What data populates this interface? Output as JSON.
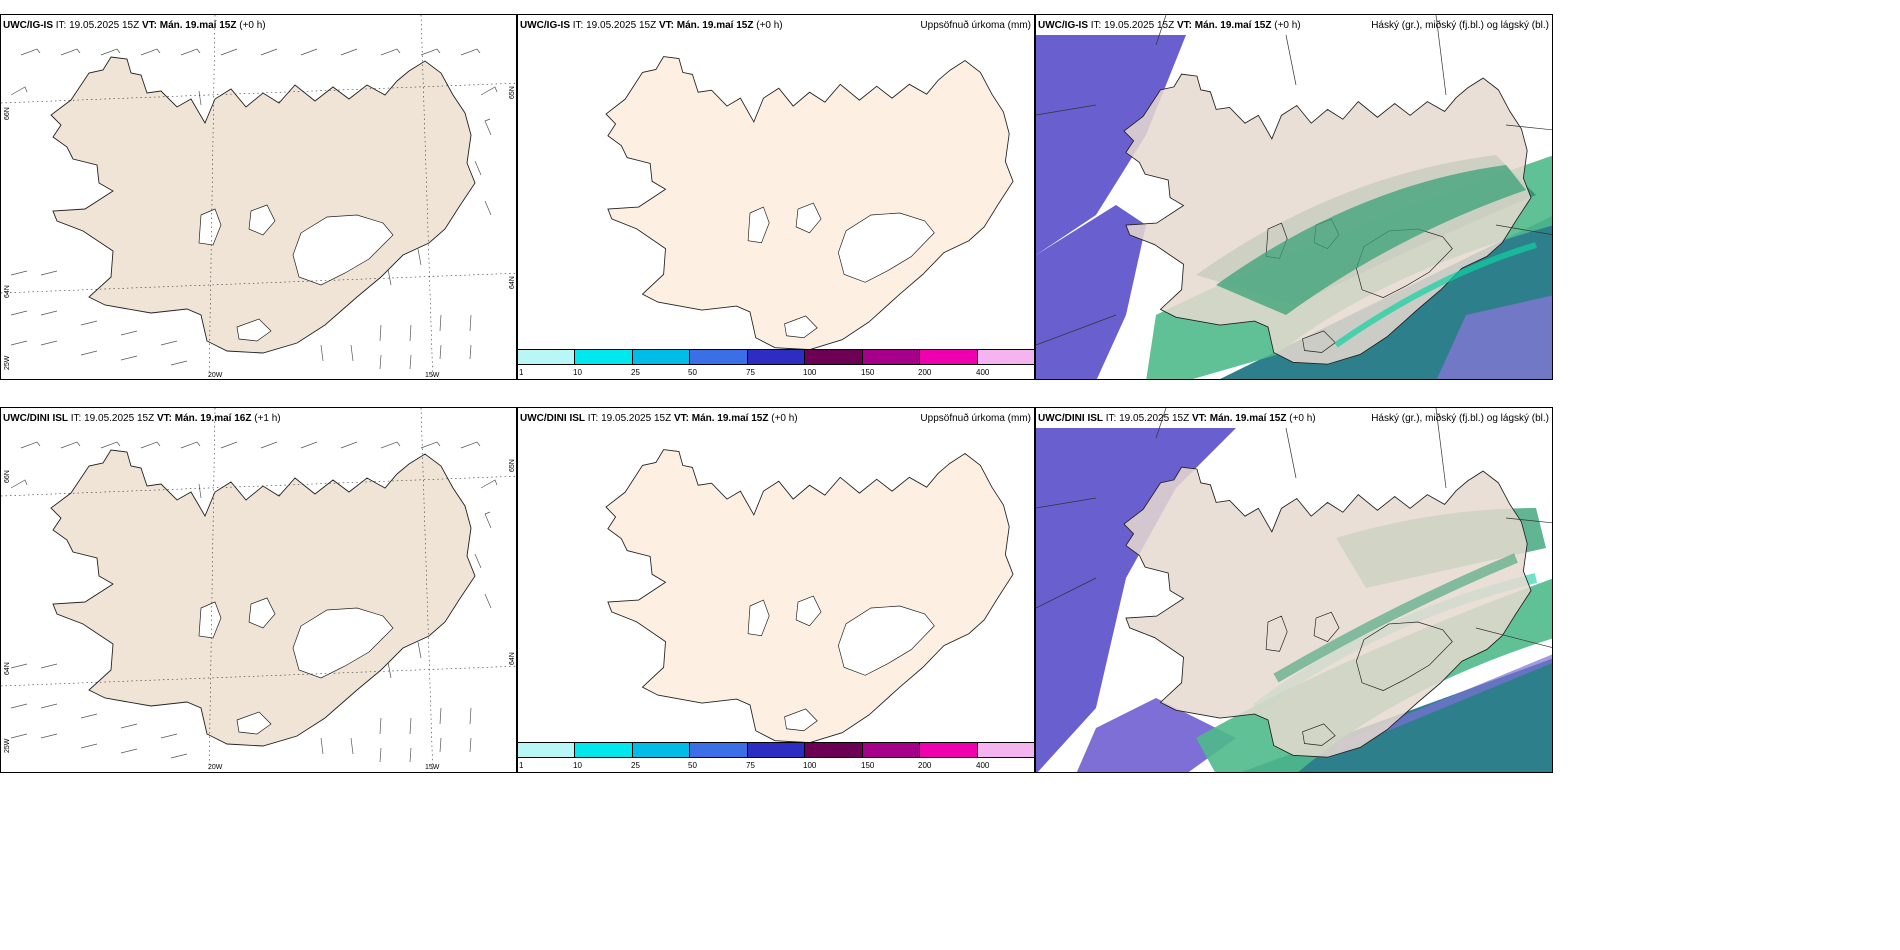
{
  "rows": [
    {
      "wind": {
        "model": "UWC/IG-IS",
        "it": "IT: 19.05.2025 15Z",
        "vt_label": "VT:",
        "vt": "Mán. 19.maí 15Z",
        "lead": "(+0 h)"
      },
      "precip": {
        "model": "UWC/IG-IS",
        "it": "IT: 19.05.2025 15Z",
        "vt_label": "VT:",
        "vt": "Mán. 19.maí 15Z",
        "lead": "(+0 h)",
        "right": "Uppsöfnuð úrkoma (mm)"
      },
      "cloud": {
        "model": "UWC/IG-IS",
        "it": "IT: 19.05.2025 15Z",
        "vt_label": "VT:",
        "vt": "Mán. 19.maí 15Z",
        "lead": "(+0 h)",
        "right": "Háský (gr.), miðský (fj.bl.) og lágský (bl.)"
      }
    },
    {
      "wind": {
        "model": "UWC/DINI ISL",
        "it": "IT: 19.05.2025 15Z",
        "vt_label": "VT:",
        "vt": "Mán. 19.maí 16Z",
        "lead": "(+1 h)"
      },
      "precip": {
        "model": "UWC/DINI ISL",
        "it": "IT: 19.05.2025 15Z",
        "vt_label": "VT:",
        "vt": "Mán. 19.maí 15Z",
        "lead": "(+0 h)",
        "right": "Uppsöfnuð úrkoma (mm)"
      },
      "cloud": {
        "model": "UWC/DINI ISL",
        "it": "IT: 19.05.2025 15Z",
        "vt_label": "VT:",
        "vt": "Mán. 19.maí 15Z",
        "lead": "(+0 h)",
        "right": "Háský (gr.), miðský (fj.bl.) og lágský (bl.)"
      }
    }
  ],
  "axis_labels": {
    "lat66": "66N",
    "lat64": "64N",
    "lat65r": "65N",
    "lat64r": "64N",
    "lon25": "25W",
    "lon20": "20W",
    "lon15": "15W"
  },
  "colorbar": {
    "ticks": [
      "1",
      "10",
      "25",
      "50",
      "75",
      "100",
      "150",
      "200",
      "400"
    ],
    "colors": [
      "#b9f6f6",
      "#00e8ee",
      "#00bde8",
      "#3b6fe6",
      "#2d2dc2",
      "#6c0055",
      "#a6008a",
      "#ef00ae",
      "#f4b4f0"
    ]
  },
  "colors": {
    "land_wind": "#efe4d6",
    "land_precip": "#fdf0e2",
    "land_cloud": "#e6d9cf",
    "sea_cloud": "#6a5fcf",
    "teal": "#2d8a8f",
    "green": "#3aa277",
    "ice": "#ffffff"
  }
}
